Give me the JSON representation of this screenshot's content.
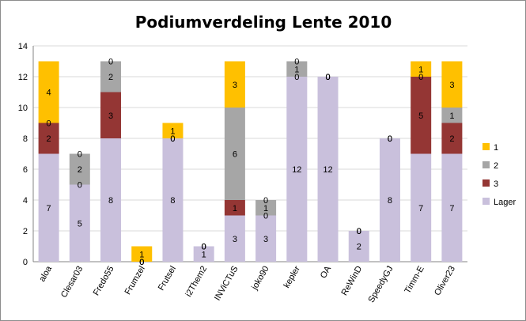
{
  "chart_data": {
    "type": "bar",
    "stacked": true,
    "title": "Podiumverdeling Lente 2010",
    "xlabel": "",
    "ylabel": "",
    "ylim": [
      0,
      14
    ],
    "yticks": [
      0,
      2,
      4,
      6,
      8,
      10,
      12,
      14
    ],
    "grid": true,
    "legend_position": "right",
    "categories": [
      "aloa",
      "Clesar03",
      "Fredo55",
      "Frumzel",
      "Frutsel",
      "i2Them2",
      "INViCTuS",
      "joko90",
      "kepler",
      "OA",
      "ReWinD",
      "SpeedyGJ",
      "Timm-E",
      "Oliver23"
    ],
    "series": [
      {
        "name": "Lager",
        "color": "#c9c0dc",
        "values": [
          7,
          5,
          8,
          0,
          8,
          1,
          3,
          3,
          12,
          12,
          2,
          8,
          7,
          7
        ]
      },
      {
        "name": "3",
        "color": "#943634",
        "values": [
          2,
          0,
          3,
          0,
          0,
          0,
          1,
          0,
          0,
          0,
          0,
          0,
          5,
          2
        ]
      },
      {
        "name": "2",
        "color": "#a6a6a6",
        "values": [
          0,
          2,
          2,
          0,
          0,
          0,
          6,
          1,
          1,
          0,
          0,
          0,
          0,
          1
        ]
      },
      {
        "name": "1",
        "color": "#ffc000",
        "values": [
          4,
          0,
          0,
          1,
          1,
          0,
          3,
          0,
          0,
          0,
          0,
          0,
          1,
          3
        ]
      }
    ],
    "legend_order": [
      "1",
      "2",
      "3",
      "Lager"
    ]
  }
}
